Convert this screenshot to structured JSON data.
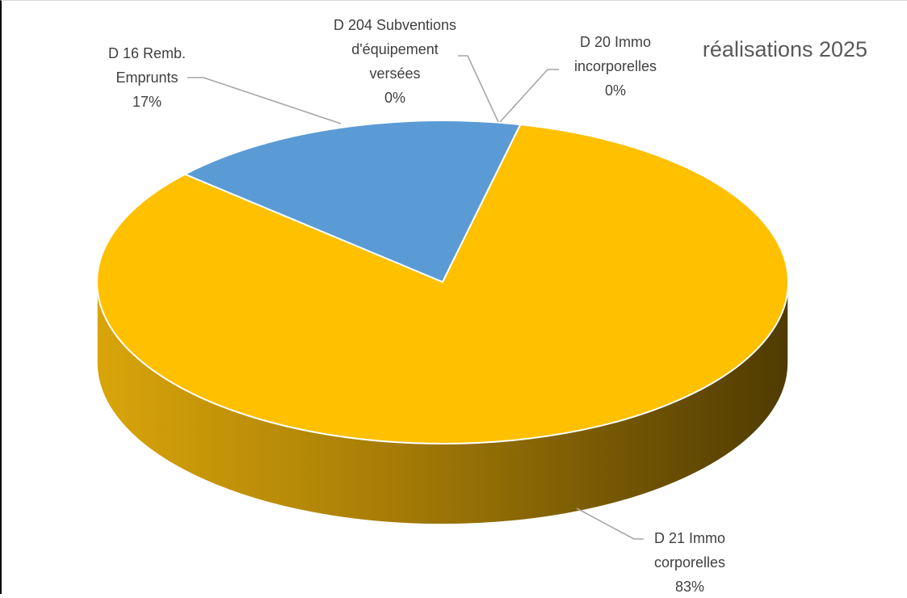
{
  "chart_data": {
    "type": "pie",
    "style": "3d",
    "title": "réalisations 2025",
    "slices": [
      {
        "label_lines": [
          "D 16 Remb.",
          "Emprunts"
        ],
        "percent_label": "17%",
        "value": 17,
        "color": "#5b9bd5"
      },
      {
        "label_lines": [
          "D 204 Subventions",
          "d'équipement",
          "versées"
        ],
        "percent_label": "0%",
        "value": 0,
        "color": "#a5a5a5"
      },
      {
        "label_lines": [
          "D 20 Immo",
          "incorporelles"
        ],
        "percent_label": "0%",
        "value": 0,
        "color": "#70ad47"
      },
      {
        "label_lines": [
          "D 21 Immo",
          "corporelles"
        ],
        "percent_label": "83%",
        "value": 83,
        "color": "#ffc000"
      }
    ],
    "legend": "none"
  }
}
